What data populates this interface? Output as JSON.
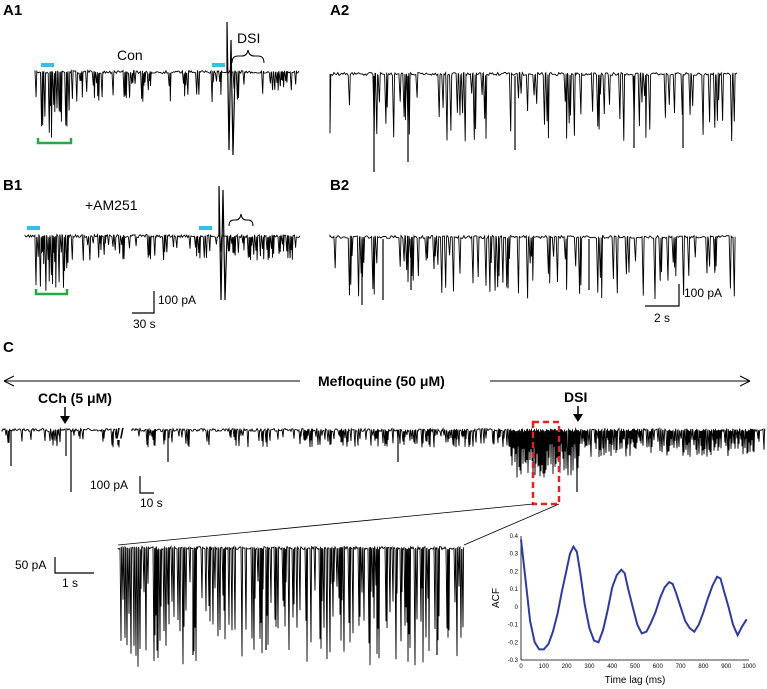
{
  "colors": {
    "trace": "#000000",
    "light_bar": "#33c2e6",
    "window_bar": "#22aa44",
    "zoom_box": "#e32222",
    "acf_line": "#2e3a9c"
  },
  "panels": {
    "A1": {
      "label": "A1",
      "condition": "Con",
      "event": "DSI"
    },
    "A2": {
      "label": "A2"
    },
    "B1": {
      "label": "B1",
      "condition": "+AM251"
    },
    "B2": {
      "label": "B2"
    },
    "C": {
      "label": "C"
    }
  },
  "scalebars": {
    "ab_left": {
      "current": "100 pA",
      "time": "30 s"
    },
    "ab_right": {
      "current": "100 pA",
      "time": "2 s"
    },
    "c_main": {
      "current": "100 pA",
      "time": "10 s"
    },
    "c_inset": {
      "current": "50 pA",
      "time": "1 s"
    }
  },
  "annotations": {
    "drug": "Mefloquine (50 μM)",
    "cch": "CCh (5 μM)",
    "dsi": "DSI",
    "break_mark": "//"
  },
  "chart_data": {
    "type": "line",
    "title": "",
    "xlabel": "Time lag (ms)",
    "ylabel": "ACF",
    "xlim": [
      0,
      1000
    ],
    "ylim": [
      -0.3,
      0.4
    ],
    "x_ticks": [
      "0",
      "100",
      "200",
      "300",
      "400",
      "500",
      "600",
      "700",
      "800",
      "900",
      "1000"
    ],
    "y_ticks": [
      "0.4",
      "0.3",
      "0.2",
      "0.1",
      "0",
      "-0.1",
      "-0.2",
      "-0.3"
    ],
    "grid": false,
    "series": [
      {
        "x": [
          0,
          20,
          40,
          60,
          80,
          100,
          120,
          140,
          160,
          180,
          200,
          215,
          230,
          245,
          260,
          280,
          300,
          320,
          340,
          360,
          380,
          400,
          420,
          440,
          455,
          470,
          490,
          510,
          530,
          550,
          570,
          590,
          610,
          630,
          650,
          665,
          680,
          700,
          720,
          740,
          760,
          780,
          800,
          820,
          840,
          860,
          875,
          890,
          910,
          930,
          950,
          970,
          990
        ],
        "y": [
          0.38,
          0.15,
          -0.08,
          -0.2,
          -0.24,
          -0.24,
          -0.21,
          -0.14,
          -0.04,
          0.09,
          0.21,
          0.3,
          0.34,
          0.31,
          0.19,
          0.01,
          -0.12,
          -0.19,
          -0.2,
          -0.13,
          -0.02,
          0.11,
          0.18,
          0.21,
          0.19,
          0.1,
          0.0,
          -0.1,
          -0.15,
          -0.14,
          -0.09,
          -0.03,
          0.05,
          0.11,
          0.14,
          0.13,
          0.08,
          0.0,
          -0.08,
          -0.12,
          -0.14,
          -0.1,
          -0.03,
          0.05,
          0.12,
          0.17,
          0.16,
          0.09,
          0.0,
          -0.1,
          -0.16,
          -0.11,
          -0.07
        ]
      }
    ]
  }
}
